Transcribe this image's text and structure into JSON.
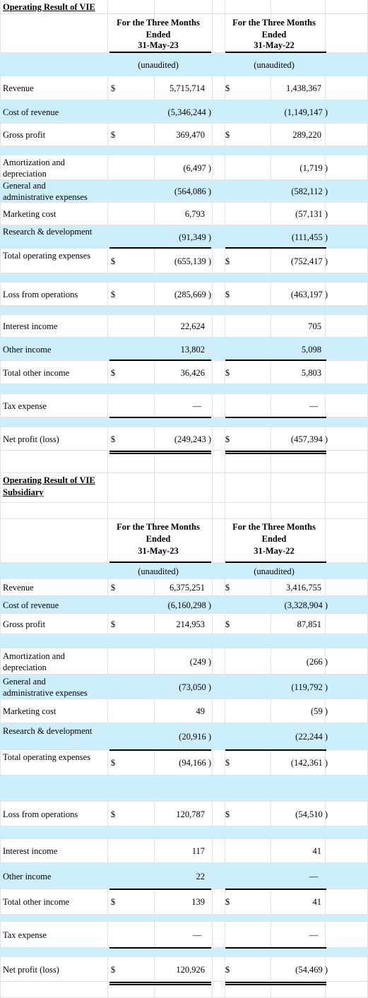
{
  "tables": [
    {
      "title": "Operating Result of VIE",
      "columns": [
        {
          "header": "For the Three Months Ended",
          "date": "31-May-23",
          "note": "(unaudited)"
        },
        {
          "header": "For the Three Months Ended",
          "date": "31-May-22",
          "note": "(unaudited)"
        }
      ],
      "rows": [
        {
          "label": "Revenue",
          "cells": [
            {
              "currency": "$",
              "value": "5,715,714"
            },
            {
              "currency": "$",
              "value": "1,438,367"
            }
          ]
        },
        {
          "label": "Cost of revenue",
          "cells": [
            {
              "value": "(5,346,244 )"
            },
            {
              "value": "(1,149,147 )"
            }
          ]
        },
        {
          "label": "Gross profit",
          "cells": [
            {
              "currency": "$",
              "value": "369,470"
            },
            {
              "currency": "$",
              "value": "289,220"
            }
          ]
        },
        {
          "label": "Amortization and depreciation",
          "cells": [
            {
              "value": "(6,497 )"
            },
            {
              "value": "(1,719 )"
            }
          ]
        },
        {
          "label": "General and administrative expenses",
          "cells": [
            {
              "value": "(564,086 )"
            },
            {
              "value": "(582,112 )"
            }
          ]
        },
        {
          "label": "Marketing cost",
          "cells": [
            {
              "value": "6,793"
            },
            {
              "value": "(57,131 )"
            }
          ]
        },
        {
          "label": "Research & development",
          "cells": [
            {
              "value": "(91,349 )"
            },
            {
              "value": "(111,455 )"
            }
          ]
        },
        {
          "label": "Total operating expenses",
          "cells": [
            {
              "currency": "$",
              "value": "(655,139 )"
            },
            {
              "currency": "$",
              "value": "(752,417 )"
            }
          ]
        },
        {
          "label": "Loss from operations",
          "cells": [
            {
              "currency": "$",
              "value": "(285,669 )"
            },
            {
              "currency": "$",
              "value": "(463,197 )"
            }
          ]
        },
        {
          "label": "Interest income",
          "cells": [
            {
              "value": "22,624"
            },
            {
              "value": "705"
            }
          ]
        },
        {
          "label": "Other income",
          "cells": [
            {
              "value": "13,802"
            },
            {
              "value": "5,098"
            }
          ]
        },
        {
          "label": "Total other income",
          "cells": [
            {
              "currency": "$",
              "value": "36,426"
            },
            {
              "currency": "$",
              "value": "5,803"
            }
          ]
        },
        {
          "label": "Tax expense",
          "cells": [
            {
              "value": "—"
            },
            {
              "value": "—"
            }
          ]
        },
        {
          "label": "Net profit (loss)",
          "cells": [
            {
              "currency": "$",
              "value": "(249,243 )"
            },
            {
              "currency": "$",
              "value": "(457,394 )"
            }
          ]
        }
      ]
    },
    {
      "title": "Operating Result of VIE Subsidiary",
      "columns": [
        {
          "header": "For the Three Months Ended",
          "date": "31-May-23",
          "note": "(unaudited)"
        },
        {
          "header": "For the Three Months Ended",
          "date": "31-May-22",
          "note": "(unaudited)"
        }
      ],
      "rows": [
        {
          "label": "Revenue",
          "cells": [
            {
              "currency": "$",
              "value": "6,375,251"
            },
            {
              "currency": "$",
              "value": "3,416,755"
            }
          ]
        },
        {
          "label": "Cost of revenue",
          "cells": [
            {
              "value": "(6,160,298 )"
            },
            {
              "value": "(3,328,904 )"
            }
          ]
        },
        {
          "label": "Gross profit",
          "cells": [
            {
              "currency": "$",
              "value": "214,953"
            },
            {
              "currency": "$",
              "value": "87,851"
            }
          ]
        },
        {
          "label": "Amortization and depreciation",
          "cells": [
            {
              "value": "(249 )"
            },
            {
              "value": "(266 )"
            }
          ]
        },
        {
          "label": "General and administrative expenses",
          "cells": [
            {
              "value": "(73,050 )"
            },
            {
              "value": "(119,792 )"
            }
          ]
        },
        {
          "label": "Marketing cost",
          "cells": [
            {
              "value": "49"
            },
            {
              "value": "(59 )"
            }
          ]
        },
        {
          "label": "Research & development",
          "cells": [
            {
              "value": "(20,916 )"
            },
            {
              "value": "(22,244 )"
            }
          ]
        },
        {
          "label": "Total operating expenses",
          "cells": [
            {
              "currency": "$",
              "value": "(94,166 )"
            },
            {
              "currency": "$",
              "value": "(142,361 )"
            }
          ]
        },
        {
          "label": "Loss from operations",
          "cells": [
            {
              "currency": "$",
              "value": "120,787"
            },
            {
              "currency": "$",
              "value": "(54,510 )"
            }
          ]
        },
        {
          "label": "Interest income",
          "cells": [
            {
              "value": "117"
            },
            {
              "value": "41"
            }
          ]
        },
        {
          "label": "Other income",
          "cells": [
            {
              "value": "22"
            },
            {
              "value": "—"
            }
          ]
        },
        {
          "label": "Total other income",
          "cells": [
            {
              "currency": "$",
              "value": "139"
            },
            {
              "currency": "$",
              "value": "41"
            }
          ]
        },
        {
          "label": "Tax expense",
          "cells": [
            {
              "value": "—"
            },
            {
              "value": "—"
            }
          ]
        },
        {
          "label": "Net profit (loss)",
          "cells": [
            {
              "currency": "$",
              "value": "120,926"
            },
            {
              "currency": "$",
              "value": "(54,469 )"
            }
          ]
        }
      ]
    }
  ]
}
